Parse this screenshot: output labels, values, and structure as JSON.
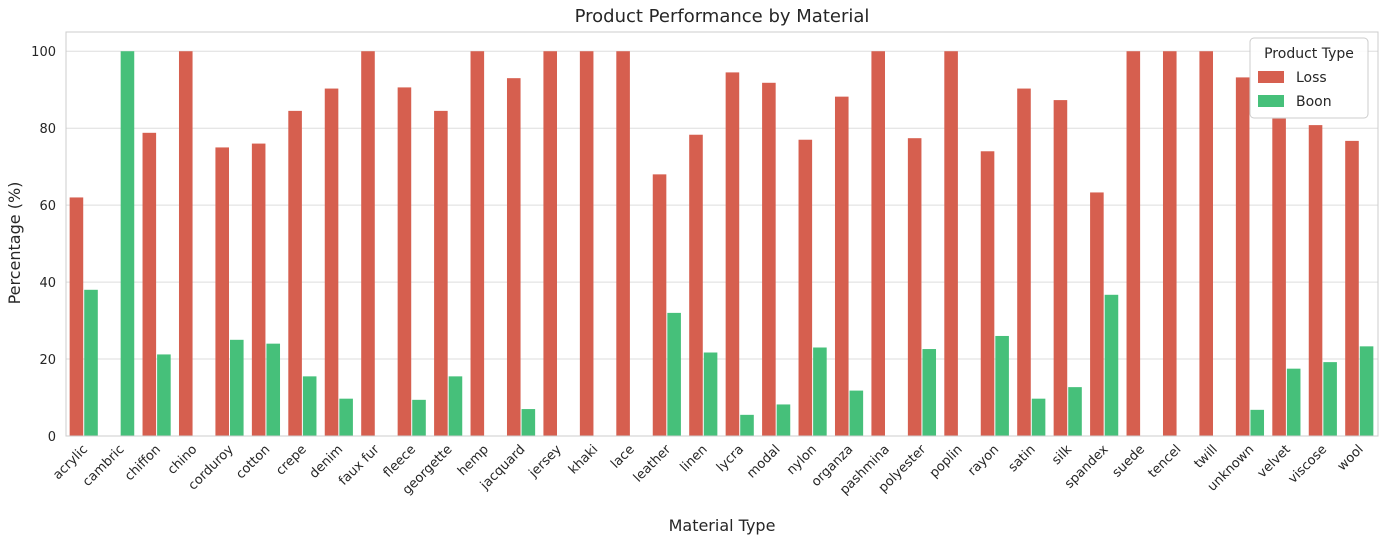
{
  "chart_data": {
    "type": "bar",
    "title": "Product Performance by Material",
    "xlabel": "Material Type",
    "ylabel": "Percentage (%)",
    "ylim": [
      0,
      105
    ],
    "yticks": [
      "0",
      "20",
      "40",
      "60",
      "80",
      "100"
    ],
    "grid": "horizontal",
    "legend": {
      "title": "Product Type",
      "placement": "top-right"
    },
    "categories": [
      "acrylic",
      "cambric",
      "chiffon",
      "chino",
      "corduroy",
      "cotton",
      "crepe",
      "denim",
      "faux fur",
      "fleece",
      "georgette",
      "hemp",
      "jacquard",
      "jersey",
      "khaki",
      "lace",
      "leather",
      "linen",
      "lycra",
      "modal",
      "nylon",
      "organza",
      "pashmina",
      "polyester",
      "poplin",
      "rayon",
      "satin",
      "silk",
      "spandex",
      "suede",
      "tencel",
      "twill",
      "unknown",
      "velvet",
      "viscose",
      "wool"
    ],
    "series": [
      {
        "name": "Loss",
        "color": "#d65f4f",
        "values": [
          62,
          0,
          78.8,
          100,
          75,
          76,
          84.5,
          90.3,
          100,
          90.6,
          84.5,
          100,
          93,
          100,
          100,
          100,
          68,
          78.3,
          94.5,
          91.8,
          77,
          88.2,
          100,
          77.4,
          100,
          74,
          90.3,
          87.3,
          63.3,
          100,
          100,
          100,
          93.2,
          82.5,
          80.8,
          76.7
        ]
      },
      {
        "name": "Boon",
        "color": "#46c07a",
        "values": [
          38,
          100,
          21.2,
          0,
          25,
          24,
          15.5,
          9.7,
          0,
          9.4,
          15.5,
          0,
          7,
          0,
          0,
          0,
          32,
          21.7,
          5.5,
          8.2,
          23,
          11.8,
          0,
          22.6,
          0,
          26,
          9.7,
          12.7,
          36.7,
          0,
          0,
          0,
          6.8,
          17.5,
          19.2,
          23.3
        ]
      }
    ]
  }
}
